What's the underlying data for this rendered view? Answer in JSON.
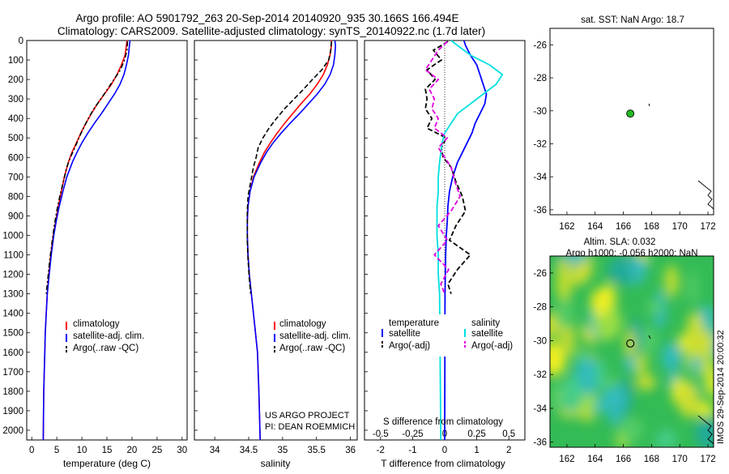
{
  "header": {
    "line1": "Argo profile: AO 5901792_263 20-Sep-2014 20140920_935 30.166S 166.494E",
    "line2": "Climatology: CARS2009. Satellite-adjusted climatology: synTS_20140922.nc (1.7d later)"
  },
  "colors": {
    "climatology": "#ff0000",
    "satellite": "#0000ff",
    "argo": "#000000",
    "salinity_sat": "#00e0e0",
    "salinity_argo": "#e000e0",
    "float_marker": "#22bb22",
    "sla_base": "#33bb55"
  },
  "chart_data": [
    {
      "id": "temperature",
      "type": "line",
      "xlabel": "temperature (deg C)",
      "ylabel": "",
      "xlim": [
        -1,
        31
      ],
      "ylim": [
        0,
        2050
      ],
      "xticks": [
        0,
        5,
        10,
        15,
        20,
        25,
        30
      ],
      "yticks": [
        0,
        100,
        200,
        300,
        400,
        500,
        600,
        700,
        800,
        900,
        1000,
        1100,
        1200,
        1300,
        1400,
        1500,
        1600,
        1700,
        1800,
        1900,
        2000
      ],
      "legend": [
        "climatology",
        "satellite-adj. clim.",
        "Argo(..raw -QC)"
      ],
      "series": [
        {
          "name": "climatology",
          "color": "#ff0000",
          "dash": "",
          "x": [
            19.0,
            18.9,
            18.6,
            17.9,
            17.0,
            15.9,
            14.5,
            13.1,
            11.9,
            10.8,
            9.8,
            8.9,
            8.0,
            7.3,
            6.5,
            5.9,
            5.3,
            4.8,
            4.3,
            3.8,
            3.4,
            3.1,
            2.9,
            2.7,
            2.6,
            2.4,
            2.3
          ],
          "y": [
            0,
            25,
            75,
            125,
            175,
            225,
            275,
            325,
            375,
            425,
            475,
            525,
            575,
            625,
            700,
            775,
            850,
            925,
            1000,
            1100,
            1200,
            1300,
            1400,
            1500,
            1600,
            1800,
            2050
          ]
        },
        {
          "name": "satellite-adj. clim.",
          "color": "#0000ff",
          "dash": "",
          "x": [
            19.6,
            19.5,
            19.3,
            18.9,
            18.4,
            17.6,
            16.5,
            15.2,
            13.9,
            12.5,
            11.2,
            10.0,
            9.0,
            8.1,
            7.0,
            6.2,
            5.5,
            4.9,
            4.4,
            3.9,
            3.5,
            3.1,
            2.9,
            2.7,
            2.6,
            2.4,
            2.3
          ],
          "y": [
            0,
            25,
            75,
            125,
            175,
            225,
            275,
            325,
            375,
            425,
            475,
            525,
            575,
            625,
            700,
            775,
            850,
            925,
            1000,
            1100,
            1200,
            1300,
            1400,
            1500,
            1600,
            1800,
            2050
          ]
        },
        {
          "name": "Argo(..raw -QC)",
          "color": "#000000",
          "dash": "6,3,2,3",
          "x": [
            19.1,
            19.0,
            18.5,
            17.7,
            16.4,
            15.1,
            13.8,
            12.4,
            11.3,
            10.3,
            9.4,
            8.6,
            7.7,
            7.0,
            6.3,
            5.6,
            5.0,
            4.5,
            4.1,
            3.6,
            3.2,
            2.9
          ],
          "y": [
            5,
            50,
            100,
            150,
            200,
            250,
            300,
            350,
            400,
            450,
            500,
            550,
            600,
            650,
            725,
            800,
            875,
            950,
            1025,
            1125,
            1225,
            1300
          ]
        }
      ]
    },
    {
      "id": "salinity",
      "type": "line",
      "xlabel": "salinity",
      "ylabel": "",
      "xlim": [
        33.7,
        36.1
      ],
      "ylim": [
        0,
        2050
      ],
      "xticks": [
        34,
        34.5,
        35,
        35.5,
        36
      ],
      "legend": [
        "climatology",
        "satellite-adj. clim.",
        "Argo(..raw -QC)"
      ],
      "annotation": [
        "US ARGO PROJECT",
        "PI: DEAN ROEMMICH"
      ],
      "series": [
        {
          "name": "climatology",
          "color": "#ff0000",
          "dash": "",
          "x": [
            35.72,
            35.72,
            35.7,
            35.66,
            35.6,
            35.51,
            35.4,
            35.27,
            35.15,
            35.03,
            34.92,
            34.82,
            34.73,
            34.66,
            34.57,
            34.52,
            34.49,
            34.48,
            34.48,
            34.49,
            34.51,
            34.54,
            34.57,
            34.6,
            34.63,
            34.65,
            34.67
          ],
          "y": [
            0,
            25,
            75,
            125,
            175,
            225,
            275,
            325,
            375,
            425,
            475,
            525,
            575,
            625,
            700,
            775,
            850,
            925,
            1000,
            1100,
            1200,
            1300,
            1400,
            1500,
            1600,
            1800,
            2050
          ]
        },
        {
          "name": "satellite-adj. clim.",
          "color": "#0000ff",
          "dash": "",
          "x": [
            35.77,
            35.78,
            35.77,
            35.75,
            35.7,
            35.62,
            35.51,
            35.38,
            35.25,
            35.11,
            34.98,
            34.86,
            34.76,
            34.68,
            34.58,
            34.52,
            34.49,
            34.48,
            34.48,
            34.49,
            34.51,
            34.54,
            34.57,
            34.6,
            34.63,
            34.65,
            34.67
          ],
          "y": [
            0,
            25,
            75,
            125,
            175,
            225,
            275,
            325,
            375,
            425,
            475,
            525,
            575,
            625,
            700,
            775,
            850,
            925,
            1000,
            1100,
            1200,
            1300,
            1400,
            1500,
            1600,
            1800,
            2050
          ]
        },
        {
          "name": "Argo(..raw -QC)",
          "color": "#000000",
          "dash": "6,3",
          "x": [
            35.72,
            35.71,
            35.68,
            35.58,
            35.44,
            35.31,
            35.17,
            35.03,
            34.91,
            34.8,
            34.71,
            34.64,
            34.61,
            34.57,
            34.53,
            34.49,
            34.48,
            34.48,
            34.48,
            34.49,
            34.51,
            34.53
          ],
          "y": [
            5,
            50,
            100,
            150,
            200,
            250,
            300,
            350,
            400,
            450,
            500,
            550,
            600,
            650,
            725,
            800,
            875,
            950,
            1025,
            1125,
            1225,
            1300
          ]
        }
      ]
    },
    {
      "id": "difference",
      "type": "line",
      "xlabel": "T difference from climatology",
      "xlabel_top": "S difference from climatology",
      "xlim": [
        -2.5,
        2.5
      ],
      "ylim": [
        0,
        2050
      ],
      "xticks": [
        -2,
        -1,
        0,
        1,
        2
      ],
      "xtick_labels": [
        "-2",
        "-1",
        "0",
        "1",
        "2"
      ],
      "s_ticks": [
        -0.5,
        -0.25,
        0,
        0.25,
        0.5
      ],
      "s_tick_labels": [
        "-0.5",
        "-0.25",
        "0",
        "0.25",
        "0.5"
      ],
      "legend_headers": [
        "temperature",
        "salinity"
      ],
      "legend": [
        "satellite",
        "Argo(-adj)",
        "satellite",
        "Argo(-adj)"
      ],
      "series": [
        {
          "name": "satellite",
          "group": "temperature",
          "color": "#0000ff",
          "dash": "",
          "x": [
            0.6,
            0.65,
            0.8,
            1.0,
            1.1,
            1.2,
            1.3,
            1.25,
            1.1,
            0.95,
            0.85,
            0.7,
            0.55,
            0.4,
            0.25,
            0.15,
            0.1,
            0.08,
            0.05,
            0.03,
            0.02,
            0.01,
            0.0
          ],
          "y": [
            0,
            25,
            75,
            125,
            175,
            225,
            275,
            325,
            375,
            425,
            475,
            525,
            575,
            625,
            700,
            775,
            850,
            925,
            1000,
            1100,
            1200,
            1300,
            2050
          ]
        },
        {
          "name": "Argo(-adj)",
          "group": "temperature",
          "color": "#000000",
          "dash": "6,3",
          "x": [
            0.1,
            -0.35,
            -0.1,
            -0.55,
            -0.3,
            -0.6,
            -0.55,
            -0.6,
            -0.4,
            -0.55,
            0.05,
            -0.1,
            -0.05,
            0.2,
            0.35,
            0.55,
            0.65,
            0.35,
            0.15,
            0.8,
            0.4,
            0.1,
            0.2
          ],
          "y": [
            5,
            50,
            100,
            150,
            200,
            250,
            300,
            350,
            400,
            450,
            500,
            550,
            600,
            650,
            725,
            800,
            875,
            950,
            1025,
            1100,
            1175,
            1250,
            1300
          ]
        },
        {
          "name": "satellite",
          "group": "salinity",
          "color": "#00e0e0",
          "dash": "",
          "x": [
            0.05,
            0.1,
            0.2,
            0.35,
            0.45,
            0.4,
            0.3,
            0.2,
            0.1,
            0.05,
            0.0,
            -0.02,
            -0.03,
            -0.04,
            -0.05,
            -0.05,
            -0.06,
            -0.06,
            -0.06,
            -0.05,
            -0.05,
            -0.04,
            -0.03
          ],
          "y": [
            0,
            25,
            75,
            125,
            175,
            225,
            275,
            325,
            375,
            425,
            475,
            525,
            575,
            625,
            700,
            775,
            850,
            925,
            1000,
            1100,
            1200,
            1300,
            2050
          ]
        },
        {
          "name": "Argo(-adj)",
          "group": "salinity",
          "color": "#e000e0",
          "dash": "6,3",
          "x": [
            0.02,
            -0.05,
            -0.1,
            -0.15,
            -0.05,
            -0.12,
            -0.08,
            -0.1,
            -0.05,
            -0.08,
            0.02,
            -0.05,
            0.0,
            0.05,
            0.08,
            0.12,
            0.05,
            -0.05,
            0.02,
            -0.08,
            0.03,
            -0.03,
            0.0
          ],
          "y": [
            5,
            50,
            100,
            150,
            200,
            250,
            300,
            350,
            400,
            450,
            500,
            550,
            600,
            650,
            725,
            800,
            875,
            950,
            1025,
            1100,
            1175,
            1250,
            1300
          ]
        }
      ]
    },
    {
      "id": "sst_map",
      "type": "scatter",
      "title": "sat. SST: NaN Argo: 18.7",
      "xlim": [
        160.8,
        172.4
      ],
      "ylim": [
        -36.3,
        -25
      ],
      "xticks": [
        162,
        164,
        166,
        168,
        170,
        172
      ],
      "yticks": [
        -26,
        -28,
        -30,
        -32,
        -34,
        -36
      ],
      "point": {
        "lon": 166.494,
        "lat": -30.166
      }
    },
    {
      "id": "sla_map",
      "type": "heatmap",
      "title": [
        "Altim. SLA: 0.032",
        "Argo h1000: -0.056 h2000: NaN"
      ],
      "xlim": [
        160.8,
        172.4
      ],
      "ylim": [
        -36.3,
        -25
      ],
      "xticks": [
        162,
        164,
        166,
        168,
        170,
        172
      ],
      "yticks": [
        -26,
        -28,
        -30,
        -32,
        -34,
        -36
      ],
      "point": {
        "lon": 166.494,
        "lat": -30.166
      },
      "side_label": "IMOS 29-Sep-2014 20:00:32"
    }
  ]
}
